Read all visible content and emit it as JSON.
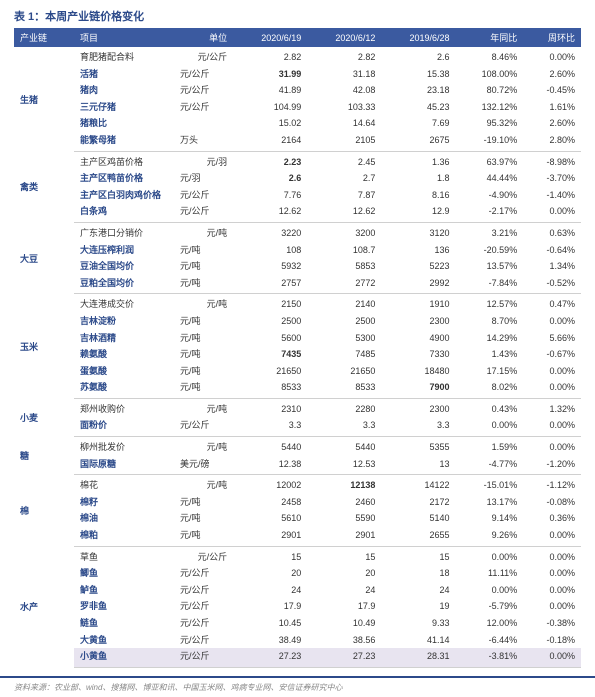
{
  "title": "表 1：本周产业链价格变化",
  "footer": "资料来源：农业部、wind、搜猪网、博亚和讯、中国玉米网、鸡病专业网、安信证券研究中心",
  "columns": [
    "产业链",
    "项目",
    "单位",
    "2020/6/19",
    "2020/6/12",
    "2019/6/28",
    "年同比",
    "周环比"
  ],
  "groups": [
    {
      "category": "生猪",
      "rows": [
        {
          "item": "育肥猪配合料",
          "unit": "元/公斤",
          "v1": "2.82",
          "v2": "2.82",
          "v3": "2.6",
          "yoy": "8.46%",
          "wow": "0.00%"
        },
        {
          "item": "活猪",
          "unit": "元/公斤",
          "v1": "31.99",
          "v2": "31.18",
          "v3": "15.38",
          "yoy": "108.00%",
          "wow": "2.60%",
          "bold": true
        },
        {
          "item": "猪肉",
          "unit": "元/公斤",
          "v1": "41.89",
          "v2": "42.08",
          "v3": "23.18",
          "yoy": "80.72%",
          "wow": "-0.45%"
        },
        {
          "item": "三元仔猪",
          "unit": "元/公斤",
          "v1": "104.99",
          "v2": "103.33",
          "v3": "45.23",
          "yoy": "132.12%",
          "wow": "1.61%"
        },
        {
          "item": "猪粮比",
          "unit": "",
          "v1": "15.02",
          "v2": "14.64",
          "v3": "7.69",
          "yoy": "95.32%",
          "wow": "2.60%"
        },
        {
          "item": "能繁母猪",
          "unit": "万头",
          "v1": "2164",
          "v2": "2105",
          "v3": "2675",
          "yoy": "-19.10%",
          "wow": "2.80%"
        }
      ]
    },
    {
      "category": "禽类",
      "rows": [
        {
          "item": "主产区鸡苗价格",
          "unit": "元/羽",
          "v1": "2.23",
          "v2": "2.45",
          "v3": "1.36",
          "yoy": "63.97%",
          "wow": "-8.98%",
          "bold": true
        },
        {
          "item": "主产区鸭苗价格",
          "unit": "元/羽",
          "v1": "2.6",
          "v2": "2.7",
          "v3": "1.8",
          "yoy": "44.44%",
          "wow": "-3.70%",
          "bold": true
        },
        {
          "item": "主产区白羽肉鸡价格",
          "unit": "元/公斤",
          "v1": "7.76",
          "v2": "7.87",
          "v3": "8.16",
          "yoy": "-4.90%",
          "wow": "-1.40%"
        },
        {
          "item": "白条鸡",
          "unit": "元/公斤",
          "v1": "12.62",
          "v2": "12.62",
          "v3": "12.9",
          "yoy": "-2.17%",
          "wow": "0.00%"
        }
      ]
    },
    {
      "category": "大豆",
      "rows": [
        {
          "item": "广东港口分销价",
          "unit": "元/吨",
          "v1": "3220",
          "v2": "3200",
          "v3": "3120",
          "yoy": "3.21%",
          "wow": "0.63%"
        },
        {
          "item": "大连压榨利润",
          "unit": "元/吨",
          "v1": "108",
          "v2": "108.7",
          "v3": "136",
          "yoy": "-20.59%",
          "wow": "-0.64%"
        },
        {
          "item": "豆油全国均价",
          "unit": "元/吨",
          "v1": "5932",
          "v2": "5853",
          "v3": "5223",
          "yoy": "13.57%",
          "wow": "1.34%"
        },
        {
          "item": "豆粕全国均价",
          "unit": "元/吨",
          "v1": "2757",
          "v2": "2772",
          "v3": "2992",
          "yoy": "-7.84%",
          "wow": "-0.52%"
        }
      ]
    },
    {
      "category": "玉米",
      "rows": [
        {
          "item": "大连港成交价",
          "unit": "元/吨",
          "v1": "2150",
          "v2": "2140",
          "v3": "1910",
          "yoy": "12.57%",
          "wow": "0.47%"
        },
        {
          "item": "吉林淀粉",
          "unit": "元/吨",
          "v1": "2500",
          "v2": "2500",
          "v3": "2300",
          "yoy": "8.70%",
          "wow": "0.00%"
        },
        {
          "item": "吉林酒精",
          "unit": "元/吨",
          "v1": "5600",
          "v2": "5300",
          "v3": "4900",
          "yoy": "14.29%",
          "wow": "5.66%"
        },
        {
          "item": "赖氨酸",
          "unit": "元/吨",
          "v1": "7435",
          "v2": "7485",
          "v3": "7330",
          "yoy": "1.43%",
          "wow": "-0.67%",
          "bold": true
        },
        {
          "item": "蛋氨酸",
          "unit": "元/吨",
          "v1": "21650",
          "v2": "21650",
          "v3": "18480",
          "yoy": "17.15%",
          "wow": "0.00%"
        },
        {
          "item": "苏氨酸",
          "unit": "元/吨",
          "v1": "8533",
          "v2": "8533",
          "v3": "7900",
          "yoy": "8.02%",
          "wow": "0.00%",
          "bold3": true
        }
      ]
    },
    {
      "category": "小麦",
      "rows": [
        {
          "item": "郑州收购价",
          "unit": "元/吨",
          "v1": "2310",
          "v2": "2280",
          "v3": "2300",
          "yoy": "0.43%",
          "wow": "1.32%"
        },
        {
          "item": "面粉价",
          "unit": "元/公斤",
          "v1": "3.3",
          "v2": "3.3",
          "v3": "3.3",
          "yoy": "0.00%",
          "wow": "0.00%"
        }
      ]
    },
    {
      "category": "糖",
      "rows": [
        {
          "item": "柳州批发价",
          "unit": "元/吨",
          "v1": "5440",
          "v2": "5440",
          "v3": "5355",
          "yoy": "1.59%",
          "wow": "0.00%"
        },
        {
          "item": "国际原糖",
          "unit": "美元/磅",
          "v1": "12.38",
          "v2": "12.53",
          "v3": "13",
          "yoy": "-4.77%",
          "wow": "-1.20%"
        }
      ]
    },
    {
      "category": "棉",
      "rows": [
        {
          "item": "棉花",
          "unit": "元/吨",
          "v1": "12002",
          "v2": "12138",
          "v3": "14122",
          "yoy": "-15.01%",
          "wow": "-1.12%",
          "bold2": true
        },
        {
          "item": "棉籽",
          "unit": "元/吨",
          "v1": "2458",
          "v2": "2460",
          "v3": "2172",
          "yoy": "13.17%",
          "wow": "-0.08%"
        },
        {
          "item": "棉油",
          "unit": "元/吨",
          "v1": "5610",
          "v2": "5590",
          "v3": "5140",
          "yoy": "9.14%",
          "wow": "0.36%"
        },
        {
          "item": "棉粕",
          "unit": "元/吨",
          "v1": "2901",
          "v2": "2901",
          "v3": "2655",
          "yoy": "9.26%",
          "wow": "0.00%"
        }
      ]
    },
    {
      "category": "水产",
      "rows": [
        {
          "item": "草鱼",
          "unit": "元/公斤",
          "v1": "15",
          "v2": "15",
          "v3": "15",
          "yoy": "0.00%",
          "wow": "0.00%"
        },
        {
          "item": "鲫鱼",
          "unit": "元/公斤",
          "v1": "20",
          "v2": "20",
          "v3": "18",
          "yoy": "11.11%",
          "wow": "0.00%"
        },
        {
          "item": "鲈鱼",
          "unit": "元/公斤",
          "v1": "24",
          "v2": "24",
          "v3": "24",
          "yoy": "0.00%",
          "wow": "0.00%"
        },
        {
          "item": "罗非鱼",
          "unit": "元/公斤",
          "v1": "17.9",
          "v2": "17.9",
          "v3": "19",
          "yoy": "-5.79%",
          "wow": "0.00%"
        },
        {
          "item": "鲢鱼",
          "unit": "元/公斤",
          "v1": "10.45",
          "v2": "10.49",
          "v3": "9.33",
          "yoy": "12.00%",
          "wow": "-0.38%"
        },
        {
          "item": "大黄鱼",
          "unit": "元/公斤",
          "v1": "38.49",
          "v2": "38.56",
          "v3": "41.14",
          "yoy": "-6.44%",
          "wow": "-0.18%"
        },
        {
          "item": "小黄鱼",
          "unit": "元/公斤",
          "v1": "27.23",
          "v2": "27.23",
          "v3": "28.31",
          "yoy": "-3.81%",
          "wow": "0.00%",
          "last": true
        }
      ]
    }
  ]
}
